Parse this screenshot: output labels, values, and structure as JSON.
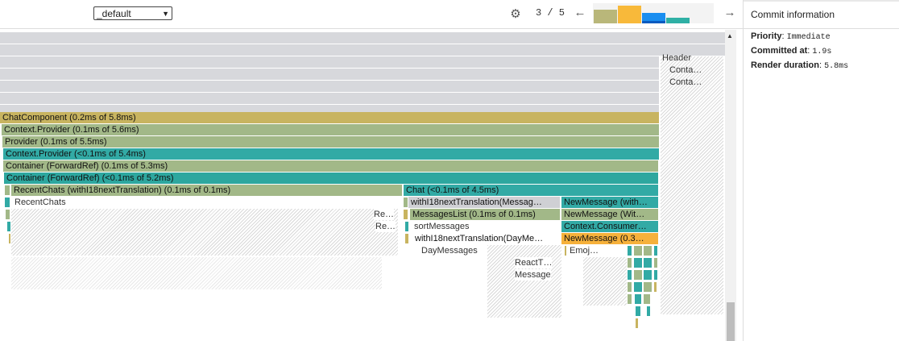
{
  "toolbar": {
    "root_selector": "_default",
    "commit_index": "3 / 5",
    "settings_icon": "gear-icon",
    "prev_icon": "arrow-left-icon",
    "next_icon": "arrow-right-icon"
  },
  "commit_bars": [
    {
      "color": "#b9b77a"
    },
    {
      "color": "#f8b93a"
    },
    {
      "color": "#1a8ef0"
    },
    {
      "color": "#2fb0a5"
    }
  ],
  "panel": {
    "title": "Commit information",
    "priority_label": "Priority",
    "priority_value": "Immediate",
    "committed_label": "Committed at",
    "committed_value": "1.9s",
    "duration_label": "Render duration",
    "duration_value": "5.8ms"
  },
  "flamegraph": {
    "nodes": [
      {
        "label": "ChatComponent (0.2ms of 5.8ms)"
      },
      {
        "label": "Context.Provider (0.1ms of 5.6ms)"
      },
      {
        "label": "Provider (0.1ms of 5.5ms)"
      },
      {
        "label": "Context.Provider (<0.1ms of 5.4ms)"
      },
      {
        "label": "Container (ForwardRef) (0.1ms of 5.3ms)"
      },
      {
        "label": "Container (ForwardRef) (<0.1ms of 5.2ms)"
      },
      {
        "label": "RecentChats (withI18nextTranslation) (0.1ms of 0.1ms)"
      },
      {
        "label": "Chat (<0.1ms of 4.5ms)"
      },
      {
        "label": "withI18nextTranslation(Messag…"
      },
      {
        "label": "NewMessage (with…"
      },
      {
        "label": "MessagesList (0.1ms of 0.1ms)"
      },
      {
        "label": "NewMessage (Wit…"
      },
      {
        "label": "Context.Consumer…"
      },
      {
        "label": "withI18nextTranslation(DayMe…"
      },
      {
        "label": "NewMessage (0.3…"
      }
    ],
    "ghost_labels": {
      "header": "Header",
      "conta1": "Conta…",
      "conta2": "Conta…",
      "recentchats": "RecentChats",
      "re1": "Re…",
      "re2": "Re…",
      "sortmessages": "sortMessages",
      "daymessages": "DayMessages",
      "emoj": "Emoj…",
      "reactt": "ReactT…",
      "message": "Message"
    }
  },
  "scrollbar": {
    "up_icon": "triangle-up-icon"
  }
}
